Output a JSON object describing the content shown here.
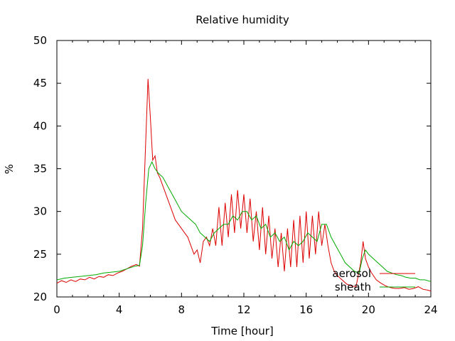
{
  "chart_data": {
    "type": "line",
    "title": "Relative humidity",
    "xlabel": "Time [hour]",
    "ylabel": "%",
    "xlim": [
      0,
      24
    ],
    "ylim": [
      20,
      50
    ],
    "xticks": [
      0,
      4,
      8,
      12,
      16,
      20,
      24
    ],
    "yticks": [
      20,
      25,
      30,
      35,
      40,
      45,
      50
    ],
    "grid": false,
    "legend_position": "bottom-right",
    "series": [
      {
        "name": "aerosol",
        "color": "#dd0000",
        "x": [
          0,
          0.3,
          0.6,
          0.9,
          1.2,
          1.5,
          1.8,
          2.1,
          2.4,
          2.7,
          3.0,
          3.3,
          3.6,
          3.9,
          4.2,
          4.5,
          4.8,
          5.1,
          5.3,
          5.5,
          5.7,
          5.85,
          6.0,
          6.15,
          6.3,
          6.45,
          6.6,
          6.8,
          7.0,
          7.2,
          7.4,
          7.6,
          7.8,
          8.0,
          8.2,
          8.4,
          8.6,
          8.8,
          9.0,
          9.2,
          9.4,
          9.6,
          9.8,
          10.0,
          10.2,
          10.4,
          10.6,
          10.8,
          11.0,
          11.2,
          11.4,
          11.6,
          11.8,
          12.0,
          12.2,
          12.4,
          12.6,
          12.8,
          13.0,
          13.2,
          13.4,
          13.6,
          13.8,
          14.0,
          14.2,
          14.4,
          14.6,
          14.8,
          15.0,
          15.2,
          15.4,
          15.6,
          15.8,
          16.0,
          16.2,
          16.4,
          16.6,
          16.8,
          17.0,
          17.2,
          17.4,
          17.6,
          17.8,
          18.0,
          18.3,
          18.6,
          18.9,
          19.2,
          19.5,
          19.65,
          19.8,
          20.0,
          20.2,
          20.5,
          20.8,
          21.1,
          21.4,
          21.7,
          22.0,
          22.3,
          22.6,
          22.9,
          23.2,
          23.5,
          23.8,
          24.0
        ],
        "y": [
          21.6,
          21.9,
          21.7,
          22.0,
          21.8,
          22.1,
          22.0,
          22.3,
          22.1,
          22.4,
          22.3,
          22.6,
          22.5,
          22.8,
          23.0,
          23.3,
          23.6,
          23.8,
          23.6,
          28.0,
          38.0,
          45.5,
          41.0,
          36.0,
          36.5,
          34.5,
          34.0,
          33.0,
          32.0,
          31.0,
          30.0,
          29.0,
          28.5,
          28.0,
          27.5,
          27.0,
          26.0,
          25.0,
          25.5,
          24.0,
          26.5,
          27.0,
          26.0,
          28.0,
          26.0,
          30.5,
          26.0,
          31.0,
          27.0,
          32.0,
          27.5,
          32.5,
          28.0,
          32.0,
          27.5,
          31.5,
          26.5,
          30.0,
          25.5,
          30.5,
          25.0,
          29.5,
          24.5,
          28.0,
          23.5,
          27.5,
          23.0,
          28.0,
          23.5,
          29.0,
          23.5,
          29.5,
          24.0,
          30.0,
          24.5,
          29.5,
          25.0,
          30.0,
          26.0,
          28.5,
          26.0,
          24.0,
          23.0,
          22.5,
          22.0,
          21.5,
          21.3,
          21.2,
          24.0,
          26.5,
          24.5,
          23.5,
          22.8,
          22.0,
          21.6,
          21.3,
          21.1,
          21.0,
          21.0,
          21.1,
          20.9,
          21.0,
          21.2,
          20.9,
          20.8,
          20.7
        ]
      },
      {
        "name": "sheath",
        "color": "#00aa00",
        "x": [
          0,
          0.5,
          1.0,
          1.5,
          2.0,
          2.5,
          3.0,
          3.5,
          4.0,
          4.5,
          5.0,
          5.3,
          5.5,
          5.7,
          5.9,
          6.1,
          6.3,
          6.5,
          6.8,
          7.1,
          7.4,
          7.7,
          8.0,
          8.3,
          8.6,
          8.9,
          9.2,
          9.5,
          9.8,
          10.1,
          10.4,
          10.7,
          11.0,
          11.3,
          11.6,
          11.9,
          12.2,
          12.5,
          12.8,
          13.1,
          13.4,
          13.7,
          14.0,
          14.3,
          14.6,
          14.9,
          15.2,
          15.5,
          15.8,
          16.1,
          16.4,
          16.7,
          17.0,
          17.3,
          17.6,
          17.9,
          18.2,
          18.5,
          18.8,
          19.1,
          19.4,
          19.6,
          19.8,
          20.0,
          20.3,
          20.6,
          20.9,
          21.2,
          21.5,
          21.8,
          22.1,
          22.4,
          22.7,
          23.0,
          23.3,
          23.6,
          24.0
        ],
        "y": [
          22.0,
          22.2,
          22.3,
          22.4,
          22.5,
          22.6,
          22.8,
          22.9,
          23.0,
          23.3,
          23.6,
          23.7,
          26.0,
          31.0,
          35.0,
          35.8,
          35.0,
          34.5,
          34.0,
          33.0,
          32.0,
          31.0,
          30.0,
          29.5,
          29.0,
          28.5,
          27.5,
          27.0,
          26.5,
          27.5,
          28.0,
          28.5,
          28.5,
          29.5,
          29.0,
          30.0,
          30.0,
          29.0,
          29.5,
          28.0,
          28.5,
          27.0,
          27.5,
          26.5,
          27.0,
          25.5,
          26.5,
          26.0,
          26.5,
          27.5,
          27.0,
          26.5,
          28.5,
          28.5,
          27.0,
          26.0,
          25.0,
          24.0,
          23.5,
          23.0,
          22.8,
          24.5,
          25.5,
          25.0,
          24.5,
          24.0,
          23.5,
          23.0,
          22.8,
          22.6,
          22.5,
          22.3,
          22.2,
          22.2,
          22.0,
          22.0,
          21.8
        ]
      }
    ]
  }
}
